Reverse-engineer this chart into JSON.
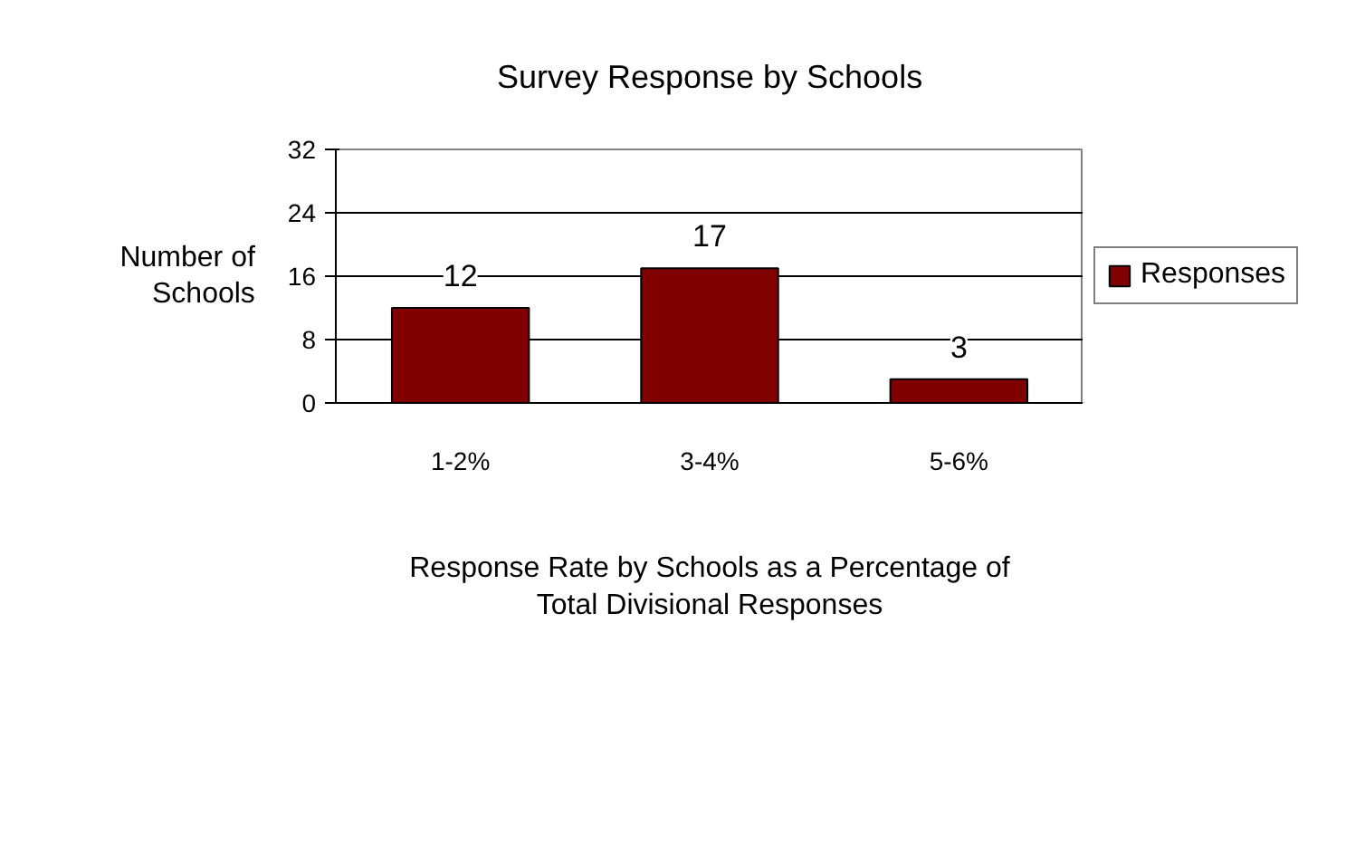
{
  "chart_data": {
    "type": "bar",
    "title": "Survey Response by Schools",
    "xlabel": "Response Rate by Schools as a Percentage of Total Divisional Responses",
    "ylabel": "Number of Schools",
    "categories": [
      "1-2%",
      "3-4%",
      "5-6%"
    ],
    "series": [
      {
        "name": "Responses",
        "color": "#800000",
        "values": [
          12,
          17,
          3
        ]
      }
    ],
    "ylim": [
      0,
      32
    ],
    "yticks": [
      0,
      8,
      16,
      24,
      32
    ],
    "grid": "y",
    "legend": "right",
    "data_labels": true
  }
}
